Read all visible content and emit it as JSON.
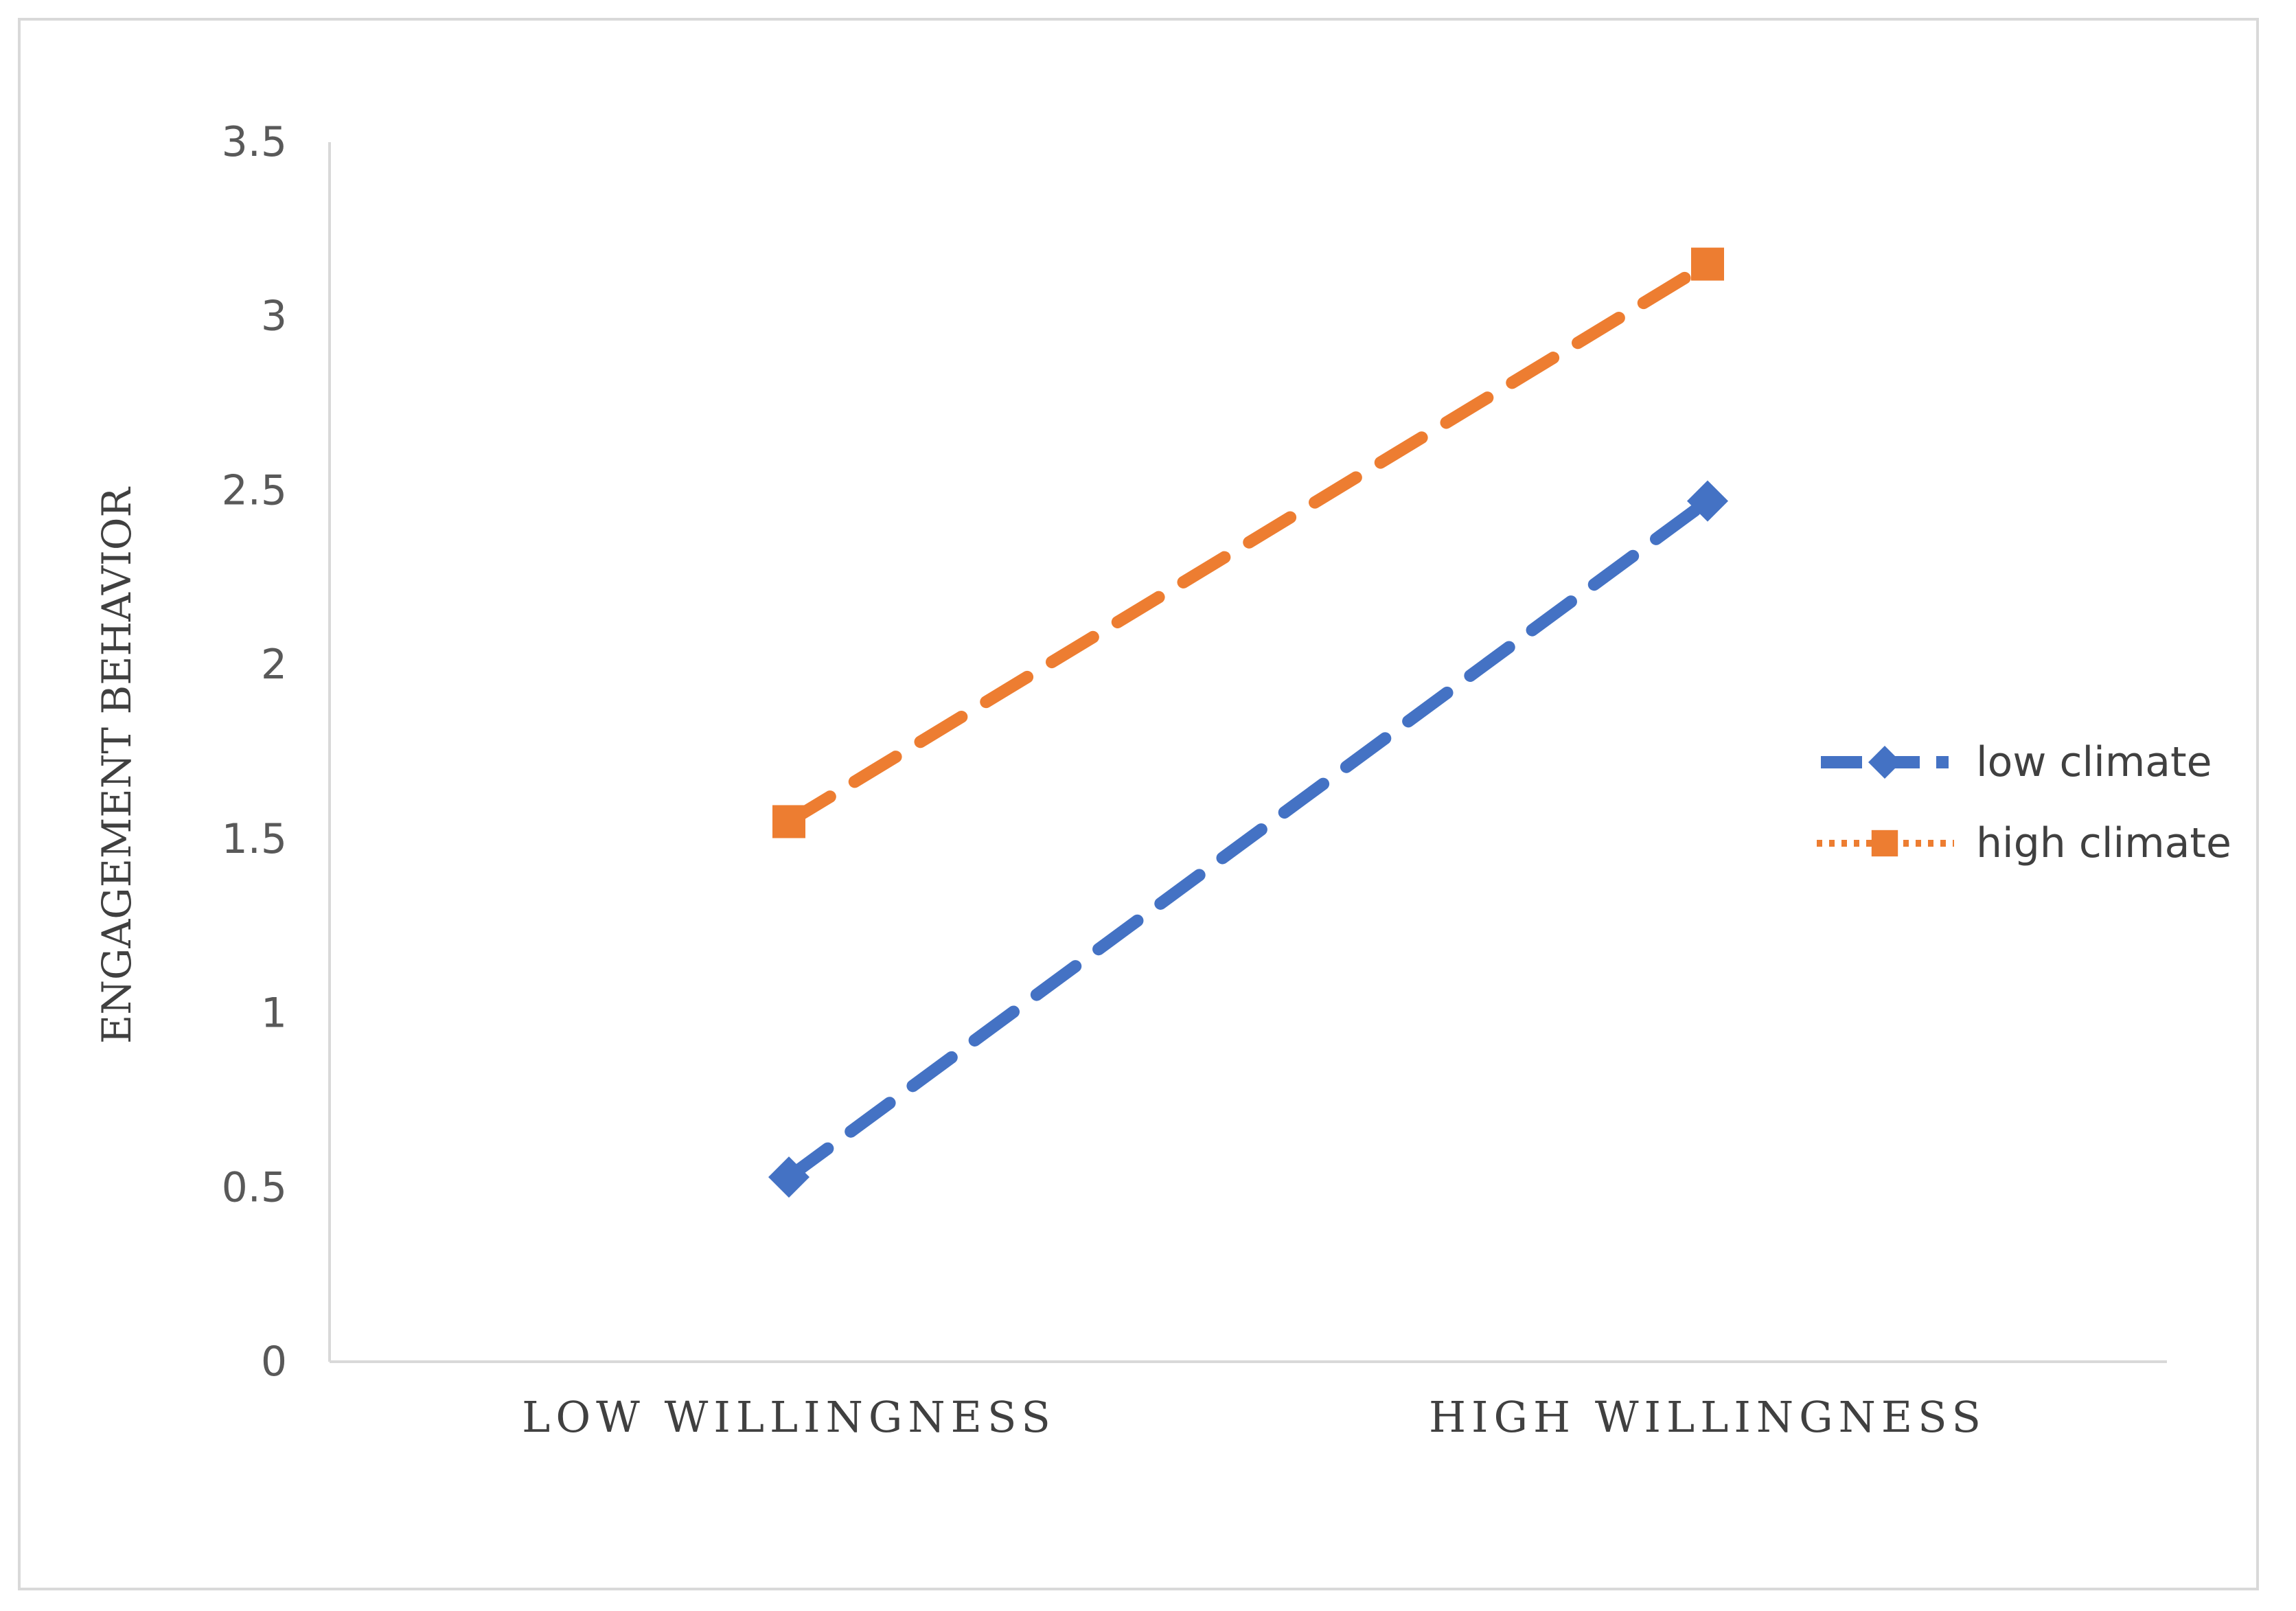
{
  "chart_data": {
    "type": "line",
    "categories": [
      "LOW WILLINGNESS",
      "HIGH WILLINGNESS"
    ],
    "series": [
      {
        "name": "low climate",
        "values": [
          0.53,
          2.47
        ],
        "color": "#4472c4",
        "marker": "diamond",
        "line_style": "dashed"
      },
      {
        "name": "high climate",
        "values": [
          1.55,
          3.15
        ],
        "color": "#ed7d31",
        "marker": "square",
        "line_style": "dashed"
      }
    ],
    "title": "",
    "xlabel": "",
    "ylabel": "ENGAGEMENT BEHAVIOR",
    "ylim": [
      0,
      3.5
    ],
    "yticks": [
      "0",
      "0.5",
      "1",
      "1.5",
      "2",
      "2.5",
      "3",
      "3.5"
    ],
    "grid": false,
    "legend_position": "right"
  }
}
